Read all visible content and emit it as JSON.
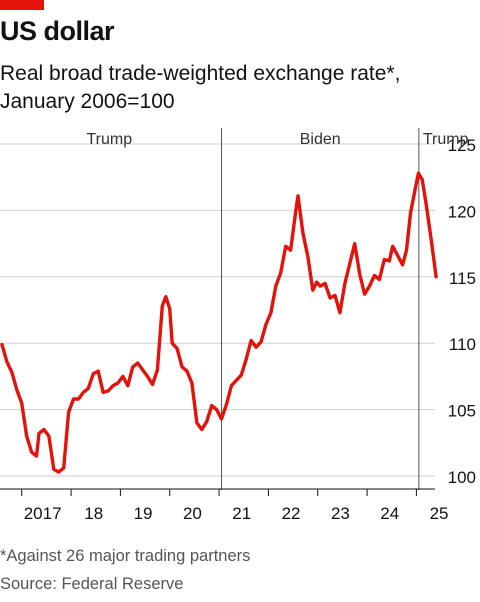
{
  "title": "US dollar",
  "subtitle_line1": "Real broad trade-weighted exchange rate*,",
  "subtitle_line2": "January 2006=100",
  "footnote": "*Against 26 major trading partners",
  "source": "Source: Federal Reserve",
  "colors": {
    "accent": "#e3120b",
    "line": "#e3120b",
    "grid": "#cfcfcf",
    "divider": "#555555"
  },
  "chart_data": {
    "type": "line",
    "title": "",
    "xlabel": "",
    "ylabel": "",
    "ylim": [
      100,
      125
    ],
    "y_ticks": [
      100,
      105,
      110,
      115,
      120,
      125
    ],
    "y_tick_labels": [
      "100",
      "105",
      "110",
      "115",
      "120",
      "125"
    ],
    "y_axis_side": "right",
    "grid": "horizontal",
    "x_ticks": [
      {
        "label": "2017",
        "x": 2017.0
      },
      {
        "label": "18",
        "x": 2018.0
      },
      {
        "label": "19",
        "x": 2019.0
      },
      {
        "label": "20",
        "x": 2020.0
      },
      {
        "label": "21",
        "x": 2021.0
      },
      {
        "label": "22",
        "x": 2022.0
      },
      {
        "label": "23",
        "x": 2023.0
      },
      {
        "label": "24",
        "x": 2024.0
      },
      {
        "label": "25",
        "x": 2025.0
      }
    ],
    "periods": [
      {
        "label": "Trump",
        "start": 2016.5,
        "end": 2021.05
      },
      {
        "label": "Biden",
        "start": 2021.05,
        "end": 2025.05
      },
      {
        "label": "Trump",
        "start": 2025.05,
        "end": 2025.7
      }
    ],
    "series": [
      {
        "values": [
          [
            2016.6,
            109.9
          ],
          [
            2016.7,
            108.6
          ],
          [
            2016.8,
            107.8
          ],
          [
            2016.9,
            106.5
          ],
          [
            2017.0,
            105.5
          ],
          [
            2017.1,
            103.0
          ],
          [
            2017.2,
            101.8
          ],
          [
            2017.3,
            101.5
          ],
          [
            2017.35,
            103.2
          ],
          [
            2017.45,
            103.5
          ],
          [
            2017.55,
            103.0
          ],
          [
            2017.65,
            100.5
          ],
          [
            2017.75,
            100.3
          ],
          [
            2017.85,
            100.6
          ],
          [
            2017.95,
            104.8
          ],
          [
            2018.05,
            105.8
          ],
          [
            2018.15,
            105.8
          ],
          [
            2018.25,
            106.3
          ],
          [
            2018.35,
            106.6
          ],
          [
            2018.45,
            107.7
          ],
          [
            2018.55,
            107.9
          ],
          [
            2018.65,
            106.3
          ],
          [
            2018.75,
            106.4
          ],
          [
            2018.85,
            106.8
          ],
          [
            2018.95,
            107.0
          ],
          [
            2019.05,
            107.5
          ],
          [
            2019.15,
            106.8
          ],
          [
            2019.25,
            108.2
          ],
          [
            2019.35,
            108.5
          ],
          [
            2019.45,
            108.0
          ],
          [
            2019.55,
            107.5
          ],
          [
            2019.65,
            106.9
          ],
          [
            2019.75,
            108.0
          ],
          [
            2019.85,
            112.8
          ],
          [
            2019.92,
            113.5
          ],
          [
            2020.0,
            112.6
          ],
          [
            2020.05,
            110.0
          ],
          [
            2020.15,
            109.6
          ],
          [
            2020.25,
            108.2
          ],
          [
            2020.35,
            107.9
          ],
          [
            2020.45,
            107.0
          ],
          [
            2020.55,
            104.0
          ],
          [
            2020.65,
            103.5
          ],
          [
            2020.75,
            104.1
          ],
          [
            2020.85,
            105.3
          ],
          [
            2020.95,
            105.0
          ],
          [
            2021.05,
            104.3
          ],
          [
            2021.15,
            105.4
          ],
          [
            2021.25,
            106.8
          ],
          [
            2021.35,
            107.2
          ],
          [
            2021.45,
            107.6
          ],
          [
            2021.55,
            108.8
          ],
          [
            2021.65,
            110.2
          ],
          [
            2021.75,
            109.7
          ],
          [
            2021.85,
            110.1
          ],
          [
            2021.95,
            111.4
          ],
          [
            2022.05,
            112.3
          ],
          [
            2022.15,
            114.3
          ],
          [
            2022.25,
            115.3
          ],
          [
            2022.35,
            117.3
          ],
          [
            2022.45,
            117.0
          ],
          [
            2022.55,
            119.8
          ],
          [
            2022.6,
            121.1
          ],
          [
            2022.7,
            118.3
          ],
          [
            2022.8,
            116.5
          ],
          [
            2022.9,
            114.0
          ],
          [
            2022.98,
            114.6
          ],
          [
            2023.05,
            114.3
          ],
          [
            2023.15,
            114.5
          ],
          [
            2023.25,
            113.4
          ],
          [
            2023.35,
            113.6
          ],
          [
            2023.45,
            112.3
          ],
          [
            2023.55,
            114.5
          ],
          [
            2023.65,
            116.0
          ],
          [
            2023.75,
            117.5
          ],
          [
            2023.85,
            115.2
          ],
          [
            2023.95,
            113.7
          ],
          [
            2024.05,
            114.3
          ],
          [
            2024.15,
            115.1
          ],
          [
            2024.25,
            114.8
          ],
          [
            2024.35,
            116.3
          ],
          [
            2024.45,
            116.2
          ],
          [
            2024.52,
            117.3
          ],
          [
            2024.62,
            116.6
          ],
          [
            2024.72,
            115.9
          ],
          [
            2024.8,
            117.0
          ],
          [
            2024.88,
            119.8
          ],
          [
            2024.97,
            121.5
          ],
          [
            2025.04,
            122.8
          ],
          [
            2025.12,
            122.3
          ],
          [
            2025.2,
            120.4
          ],
          [
            2025.3,
            117.8
          ],
          [
            2025.4,
            115.0
          ]
        ]
      }
    ]
  }
}
